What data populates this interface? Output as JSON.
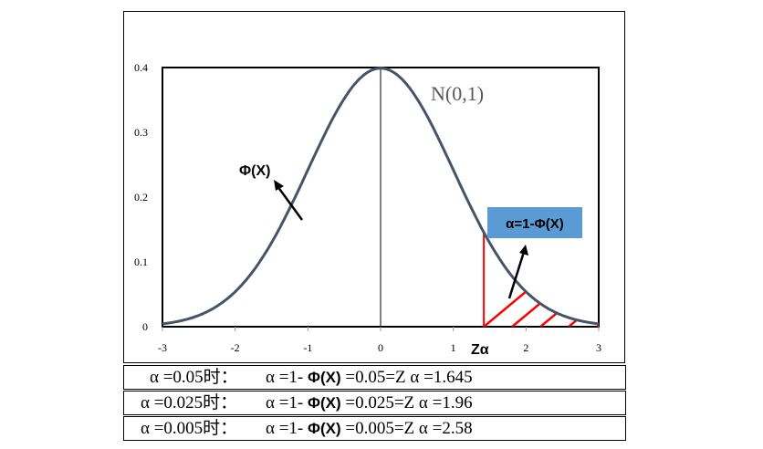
{
  "chart_data": {
    "type": "line",
    "title": "",
    "distribution_label": "N(0,1)",
    "curve": "standard normal pdf",
    "x_range": [
      -3,
      3
    ],
    "ylim": [
      0,
      0.4
    ],
    "x_ticks": [
      "-3",
      "-2",
      "-1",
      "0",
      "1",
      "2",
      "3"
    ],
    "y_ticks": [
      "0",
      "0.1",
      "0.2",
      "0.3",
      "0.4"
    ],
    "z_alpha_label": "Zα",
    "phi_label": "Φ(X)",
    "alpha_box_label": "α=1-Φ(X)",
    "shaded_from": 1.42,
    "colors": {
      "curve": "#44546a",
      "hatch": "#ff0000",
      "box": "#5b9bd5"
    }
  },
  "table": [
    {
      "cond": "α =0.05时：",
      "expr": "α =1- ",
      "phi": "Φ(X)",
      "result": " =0.05=Z α =1.645"
    },
    {
      "cond": "α =0.025时：",
      "expr": "α =1- ",
      "phi": "Φ(X)",
      "result": " =0.025=Z α =1.96"
    },
    {
      "cond": "α =0.005时：",
      "expr": "α =1- ",
      "phi": "Φ(X)",
      "result": " =0.005=Z α =2.58"
    }
  ]
}
